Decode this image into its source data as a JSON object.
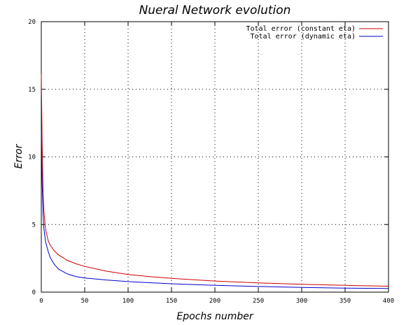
{
  "chart_data": {
    "type": "line",
    "title": "Nueral Network evolution",
    "xlabel": "Epochs number",
    "ylabel": "Error",
    "xlim": [
      0,
      400
    ],
    "ylim": [
      0,
      20
    ],
    "xticks": [
      0,
      50,
      100,
      150,
      200,
      250,
      300,
      350,
      400
    ],
    "yticks": [
      0,
      5,
      10,
      15,
      20
    ],
    "grid": true,
    "legend_position": "top-right",
    "series": [
      {
        "name": "Total error (constant eta)",
        "color": "#cc0000",
        "x": [
          0,
          1,
          2,
          3,
          5,
          8,
          10,
          15,
          20,
          30,
          40,
          50,
          75,
          100,
          125,
          150,
          200,
          250,
          300,
          350,
          400
        ],
        "y": [
          16.1,
          11.0,
          7.6,
          6.0,
          4.6,
          3.8,
          3.5,
          3.05,
          2.75,
          2.35,
          2.1,
          1.9,
          1.55,
          1.3,
          1.15,
          1.02,
          0.82,
          0.68,
          0.58,
          0.5,
          0.44
        ]
      },
      {
        "name": "Total error (dynamic eta)",
        "color": "#0000cc",
        "x": [
          0,
          1,
          2,
          3,
          5,
          8,
          10,
          15,
          20,
          30,
          40,
          50,
          75,
          100,
          125,
          150,
          200,
          250,
          300,
          350,
          400
        ],
        "y": [
          12.0,
          8.0,
          5.8,
          4.7,
          3.7,
          3.0,
          2.6,
          2.05,
          1.7,
          1.35,
          1.15,
          1.05,
          0.9,
          0.78,
          0.7,
          0.62,
          0.5,
          0.42,
          0.35,
          0.3,
          0.27
        ]
      }
    ]
  }
}
